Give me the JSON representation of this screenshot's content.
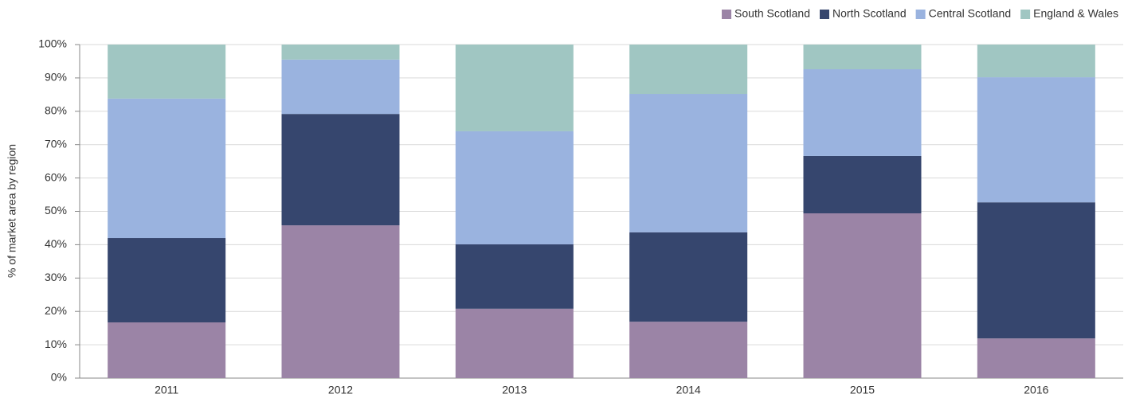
{
  "chart_data": {
    "type": "stacked_bar",
    "y_label": "% of market area by region",
    "categories": [
      "2011",
      "2012",
      "2013",
      "2014",
      "2015",
      "2016"
    ],
    "series": [
      {
        "name": "South Scotland",
        "color": "#9b84a6",
        "values": [
          16.7,
          45.8,
          20.8,
          16.9,
          49.4,
          11.9
        ]
      },
      {
        "name": "North Scotland",
        "color": "#36466e",
        "values": [
          25.3,
          33.4,
          19.3,
          26.8,
          17.2,
          40.8
        ]
      },
      {
        "name": "Central Scotland",
        "color": "#9ab3df",
        "values": [
          41.8,
          16.3,
          33.9,
          41.5,
          26.0,
          37.5
        ]
      },
      {
        "name": "England & Wales",
        "color": "#a0c6c2",
        "values": [
          16.2,
          4.5,
          26.0,
          14.8,
          7.4,
          9.8
        ]
      }
    ],
    "ylim": [
      0,
      100
    ],
    "yticks": [
      {
        "value": 0,
        "label": "0%"
      },
      {
        "value": 10,
        "label": "10%"
      },
      {
        "value": 20,
        "label": "20%"
      },
      {
        "value": 30,
        "label": "30%"
      },
      {
        "value": 40,
        "label": "40%"
      },
      {
        "value": 50,
        "label": "50%"
      },
      {
        "value": 60,
        "label": "60%"
      },
      {
        "value": 70,
        "label": "70%"
      },
      {
        "value": 80,
        "label": "80%"
      },
      {
        "value": 90,
        "label": "90%"
      },
      {
        "value": 100,
        "label": "100%"
      }
    ],
    "grid": true,
    "legend": "top-right"
  }
}
